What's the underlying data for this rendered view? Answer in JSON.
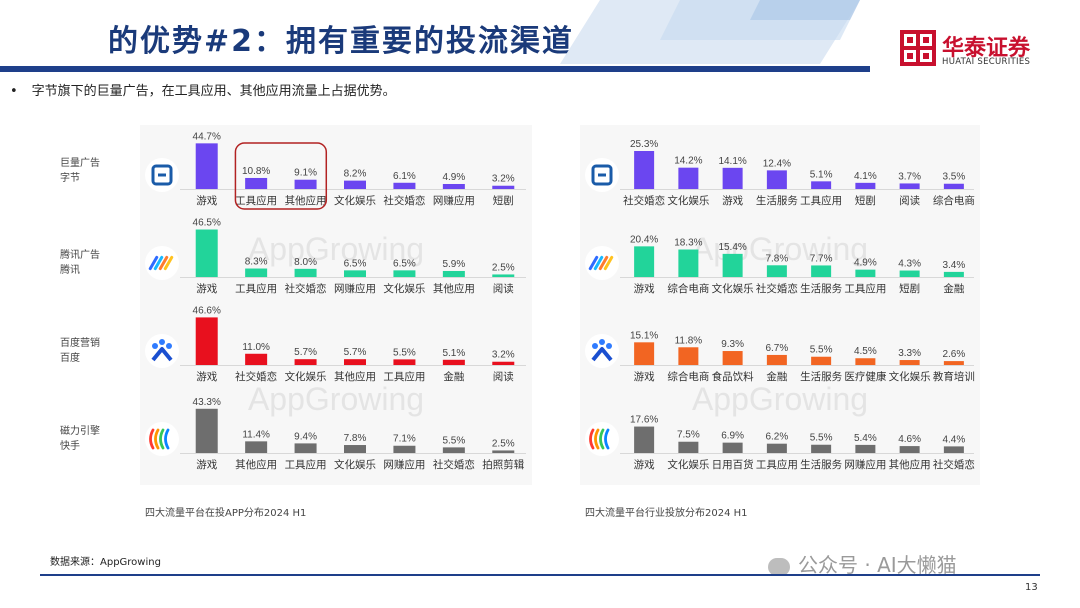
{
  "header": {
    "title": "的优势#2：拥有重要的投流渠道"
  },
  "brand": {
    "name_cn": "华泰证券",
    "name_en": "HUATAI SECURITIES",
    "color": "#c8102e"
  },
  "bullet": "字节旗下的巨量广告，在工具应用、其他应用流量上占据优势。",
  "platforms": [
    {
      "label_line1": "巨量广告",
      "label_line2": "字节",
      "icon": "ocean-engine-icon"
    },
    {
      "label_line1": "腾讯广告",
      "label_line2": "腾讯",
      "icon": "tencent-ads-icon"
    },
    {
      "label_line1": "百度营销",
      "label_line2": "百度",
      "icon": "baidu-marketing-icon"
    },
    {
      "label_line1": "磁力引擎",
      "label_line2": "快手",
      "icon": "kuaishou-magnetic-icon"
    }
  ],
  "captions": {
    "left": "四大流量平台在投APP分布2024 H1",
    "right": "四大流量平台行业投放分布2024 H1"
  },
  "source": "数据来源：AppGrowing",
  "watermark": "AppGrowing",
  "wechat": "公众号 · AI大懒猫",
  "page_number": "13",
  "chart_data": [
    {
      "type": "bar",
      "title": "四大流量平台在投APP分布2024 H1",
      "panels": [
        {
          "platform": "巨量广告",
          "color": "#6b46f0",
          "categories": [
            "游戏",
            "工具应用",
            "其他应用",
            "文化娱乐",
            "社交婚恋",
            "网赚应用",
            "短剧"
          ],
          "values": [
            44.7,
            10.8,
            9.1,
            8.2,
            6.1,
            4.9,
            3.2
          ],
          "labels": [
            "44.7%",
            "10.8%",
            "9.1%",
            "8.2%",
            "6.1%",
            "4.9%",
            "3.2%"
          ],
          "highlight": [
            1,
            2
          ]
        },
        {
          "platform": "腾讯广告",
          "color": "#22d49a",
          "categories": [
            "游戏",
            "工具应用",
            "社交婚恋",
            "网赚应用",
            "文化娱乐",
            "其他应用",
            "阅读"
          ],
          "values": [
            46.5,
            8.3,
            8.0,
            6.5,
            6.5,
            5.9,
            2.5
          ],
          "labels": [
            "46.5%",
            "8.3%",
            "8.0%",
            "6.5%",
            "6.5%",
            "5.9%",
            "2.5%"
          ]
        },
        {
          "platform": "百度营销",
          "color": "#e8101e",
          "categories": [
            "游戏",
            "社交婚恋",
            "文化娱乐",
            "其他应用",
            "工具应用",
            "金融",
            "阅读"
          ],
          "values": [
            46.6,
            11.0,
            5.7,
            5.7,
            5.5,
            5.1,
            3.2
          ],
          "labels": [
            "46.6%",
            "11.0%",
            "5.7%",
            "5.7%",
            "5.5%",
            "5.1%",
            "3.2%"
          ]
        },
        {
          "platform": "磁力引擎",
          "color": "#6e6e6e",
          "categories": [
            "游戏",
            "其他应用",
            "工具应用",
            "文化娱乐",
            "网赚应用",
            "社交婚恋",
            "拍照剪辑"
          ],
          "values": [
            43.3,
            11.4,
            9.4,
            7.8,
            7.1,
            5.5,
            2.5
          ],
          "labels": [
            "43.3%",
            "11.4%",
            "9.4%",
            "7.8%",
            "7.1%",
            "5.5%",
            "2.5%"
          ]
        }
      ]
    },
    {
      "type": "bar",
      "title": "四大流量平台行业投放分布2024 H1",
      "panels": [
        {
          "platform": "巨量广告",
          "color": "#6b46f0",
          "categories": [
            "社交婚恋",
            "文化娱乐",
            "游戏",
            "生活服务",
            "工具应用",
            "短剧",
            "阅读",
            "综合电商"
          ],
          "values": [
            25.3,
            14.2,
            14.1,
            12.4,
            5.1,
            4.1,
            3.7,
            3.5
          ],
          "labels": [
            "25.3%",
            "14.2%",
            "14.1%",
            "12.4%",
            "5.1%",
            "4.1%",
            "3.7%",
            "3.5%"
          ]
        },
        {
          "platform": "腾讯广告",
          "color": "#22d49a",
          "categories": [
            "游戏",
            "综合电商",
            "文化娱乐",
            "社交婚恋",
            "生活服务",
            "工具应用",
            "短剧",
            "金融"
          ],
          "values": [
            20.4,
            18.3,
            15.4,
            7.8,
            7.7,
            4.9,
            4.3,
            3.4
          ],
          "labels": [
            "20.4%",
            "18.3%",
            "15.4%",
            "7.8%",
            "7.7%",
            "4.9%",
            "4.3%",
            "3.4%"
          ]
        },
        {
          "platform": "百度营销",
          "color": "#f26522",
          "categories": [
            "游戏",
            "综合电商",
            "食品饮料",
            "金融",
            "生活服务",
            "医疗健康",
            "文化娱乐",
            "教育培训"
          ],
          "values": [
            15.1,
            11.8,
            9.3,
            6.7,
            5.5,
            4.5,
            3.3,
            2.6
          ],
          "labels": [
            "15.1%",
            "11.8%",
            "9.3%",
            "6.7%",
            "5.5%",
            "4.5%",
            "3.3%",
            "2.6%"
          ]
        },
        {
          "platform": "磁力引擎",
          "color": "#6e6e6e",
          "categories": [
            "游戏",
            "文化娱乐",
            "日用百货",
            "工具应用",
            "生活服务",
            "网赚应用",
            "其他应用",
            "社交婚恋"
          ],
          "values": [
            17.6,
            7.5,
            6.9,
            6.2,
            5.5,
            5.4,
            4.6,
            4.4
          ],
          "labels": [
            "17.6%",
            "7.5%",
            "6.9%",
            "6.2%",
            "5.5%",
            "5.4%",
            "4.6%",
            "4.4%"
          ]
        }
      ]
    }
  ]
}
